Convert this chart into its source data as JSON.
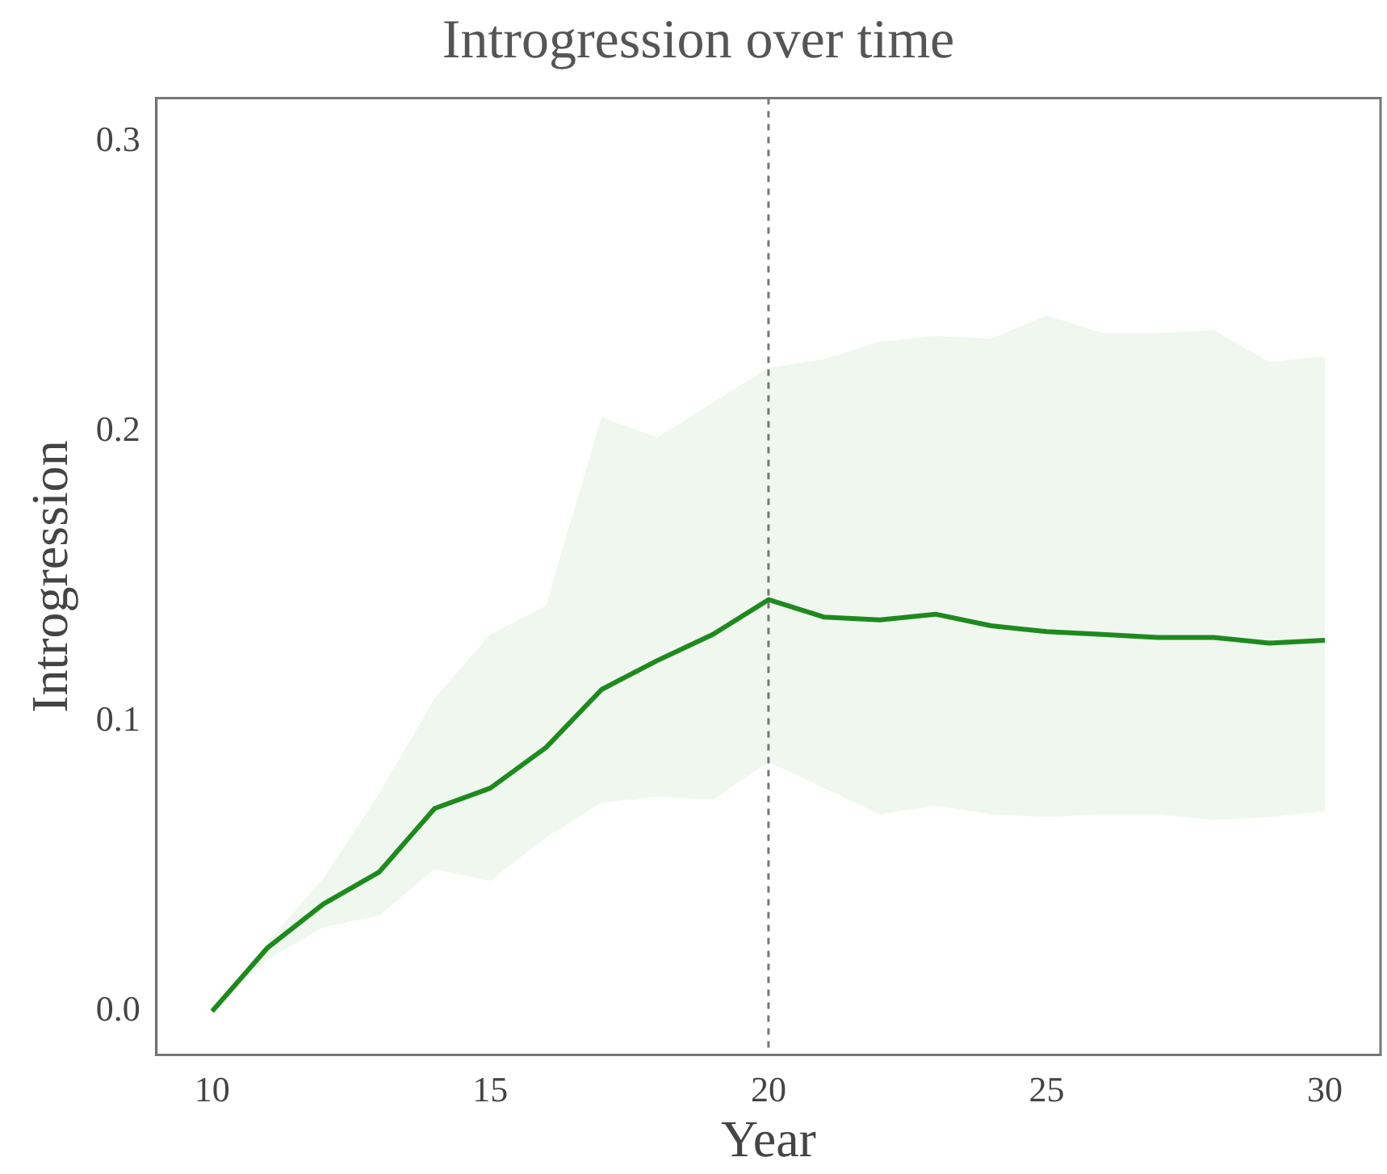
{
  "chart_data": {
    "type": "line",
    "title": "Introgression over time",
    "xlabel": "Year",
    "ylabel": "Introgression",
    "x": [
      10,
      11,
      12,
      13,
      14,
      15,
      16,
      17,
      18,
      19,
      20,
      21,
      22,
      23,
      24,
      25,
      26,
      27,
      28,
      29,
      30
    ],
    "series": [
      {
        "color": "#1e8a1e",
        "values": [
          0,
          0.022,
          0.037,
          0.048,
          0.07,
          0.077,
          0.091,
          0.111,
          0.121,
          0.13,
          0.142,
          0.136,
          0.135,
          0.137,
          0.133,
          0.131,
          0.13,
          0.129,
          0.129,
          0.127,
          0.128
        ],
        "lower": [
          0,
          0.018,
          0.029,
          0.033,
          0.049,
          0.045,
          0.06,
          0.072,
          0.074,
          0.073,
          0.086,
          0.077,
          0.068,
          0.071,
          0.068,
          0.067,
          0.068,
          0.068,
          0.066,
          0.067,
          0.069
        ],
        "upper": [
          0,
          0.024,
          0.046,
          0.075,
          0.108,
          0.13,
          0.14,
          0.205,
          0.198,
          0.21,
          0.222,
          0.225,
          0.231,
          0.233,
          0.232,
          0.24,
          0.234,
          0.234,
          0.235,
          0.224,
          0.226
        ]
      }
    ],
    "xlim": [
      9,
      31
    ],
    "xticks": [
      10,
      15,
      20,
      25,
      30
    ],
    "ylim": [
      -0.015,
      0.315
    ],
    "yticks": [
      {
        "value": 0,
        "label": "0.0"
      },
      {
        "value": 0.1,
        "label": "0.1"
      },
      {
        "value": 0.2,
        "label": "0.2"
      },
      {
        "value": 0.3,
        "label": "0.3"
      }
    ],
    "ref_lines": [
      {
        "axis": "x",
        "value": 20,
        "color": "#777777",
        "line_style": "dashed"
      }
    ],
    "grid": false,
    "marker": "none",
    "line_style": "solid"
  }
}
